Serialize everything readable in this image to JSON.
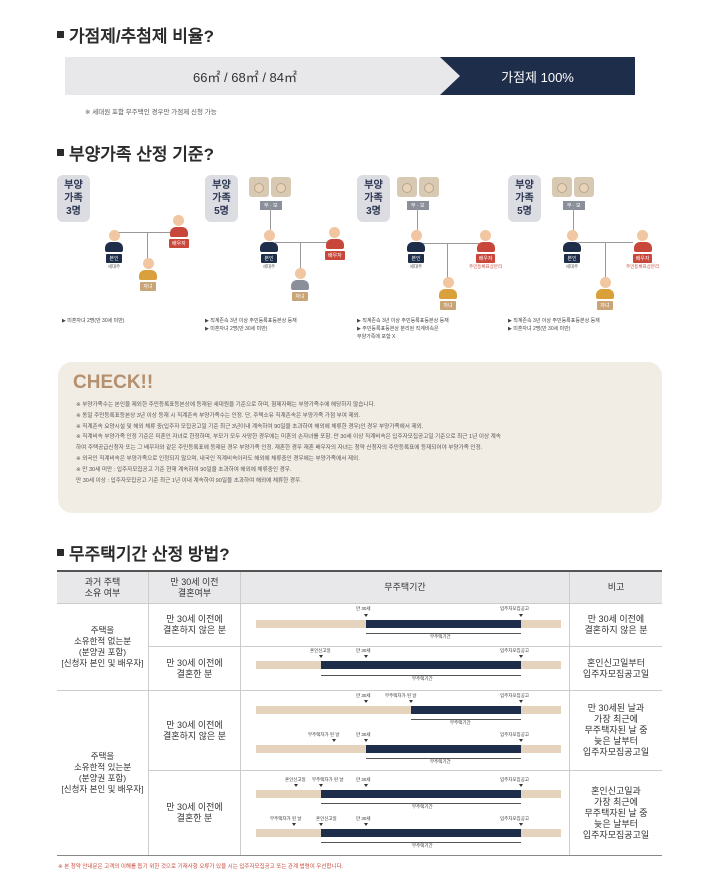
{
  "section1": {
    "title": "가점제/추첨제 비율?",
    "left": "66㎡ / 68㎡ / 84㎡",
    "right": "가점제 100%",
    "note": "※ 세대원 포함 무주택인 경우만 가점제 신청 가능"
  },
  "section2": {
    "title": "부양가족 산정 기준?"
  },
  "families": [
    {
      "badge": [
        "부양",
        "가족",
        "3명"
      ],
      "notes": [
        "▶ 미혼자녀 2명(만 30세 미만)"
      ]
    },
    {
      "badge": [
        "부양",
        "가족",
        "5명"
      ],
      "notes": [
        "▶ 직계존속 3년 이상 주민등록표등본상 등재",
        "▶ 미혼자녀 2명(만 30세 미만)"
      ]
    },
    {
      "badge": [
        "부양",
        "가족",
        "3명"
      ],
      "notes": [
        "▶ 직계존속 3년 이상 주민등록표등본상 등재",
        "▶ 주민등록표등본상 분리된 직계비속은",
        "   부양가족에 포함 X"
      ]
    },
    {
      "badge": [
        "부양",
        "가족",
        "5명"
      ],
      "notes": [
        "▶ 직계존속 3년 이상 주민등록표등본상 등재",
        "▶ 미혼자녀 2명(만 30세 미만)"
      ]
    }
  ],
  "tags": {
    "self": "본인",
    "head": "세대주",
    "spouse": "배우자",
    "child": "자녀",
    "parents": "부 · 모",
    "separate": "주민등록표상분리"
  },
  "check": {
    "title": "CHECK!!",
    "items": [
      "※ 부양가족수는 본인을 제외한 주민등록표등본상에 등재된 세대원을 기준으로 하며, 형제자매는 부양가족수에 해당하지 않습니다.",
      "※ 동일 주민등록표등본상 3년 이상 등재 시 직계존속 부양가족수는 인정. 단, 주택소유 직계존속은 부양가족 가점 부여 제외.",
      "※ 직계존속 요양시설 및 해외 체류 중(입주자 모집공고일 기준 최근 3년이내 계속하여 90일을 초과하여 해외에 체류한 경우)인 경우 부양가족에서 제외.",
      "※ 직계비속 부양가족 인정 기준은 미혼인 자녀로 한정하며, 부모가 모두 사망한 경우에는 미혼의 손자녀를 포함. 만 30세 이상 직계비속은 입주자모집공고일 기준으로 최근 1년 이상 계속",
      "   하여 주택공급신청자 또는 그 배우자와 같은 주민등록표에 등재된 경우 부양가족 인정. 재혼한 경우 재혼 배우자의 자녀는 청약 신청자의 주민등록표에 등재되어야 부양가족 인정.",
      "※ 외국인 직계비속은 부양가족으로 인정되지 않으며, 내국인 직계비속이라도 해외에 체류중인 경우에는 부양가족에서 제외.",
      "※ 만 30세 미만 : 입주자모집공고 기준 현재 계속하여 90일을 초과하여 해외에 체류중인 경우.",
      "   만 30세 이상 : 입주자모집공고 기준 최근 1년 이내 계속하여 90일을 초과하여 해외에 체류한 경우."
    ]
  },
  "section3": {
    "title": "무주택기간 산정 방법?"
  },
  "table": {
    "headers": [
      "과거 주택\n소유 여부",
      "만 30세 이전\n결혼여부",
      "무주택기간",
      "비고"
    ],
    "group1": "주택을\n소유한적 없는분\n(분양권 포함)\n[신청자 본인 및 배우자]",
    "group2": "주택을\n소유한적 있는분\n(분양권 포함)\n[신청자 본인 및 배우자]",
    "rows": [
      {
        "married": "만 30세 이전에\n결혼하지 않은 분",
        "note": "만 30세 이전에\n결혼하지 않은 분"
      },
      {
        "married": "만 30세 이전에\n결혼한 분",
        "note": "혼인신고일부터\n입주자모집공고일"
      },
      {
        "married": "만 30세 이전에\n결혼하지 않은 분",
        "note": "만 30세된 날과\n가장 최근에\n무주택자된 날 중\n늦은 날부터\n입주자모집공고일"
      },
      {
        "married": "만 30세 이전에\n결혼한 분",
        "note": "혼인신고일과\n가장 최근에\n무주택자된 날 중\n늦은 날부터\n입주자모집공고일"
      }
    ],
    "labels": {
      "age30": "만 30세",
      "notice": "입주자모집공고",
      "period": "무주택기간",
      "marriage": "혼인신고일",
      "homeless": "무주택자가 된 날"
    }
  },
  "footnote": "※ 본 청약 안내문은 고객의 이해를 돕기 위한 것으로 기재사항 오류가 있을 시는 입주자모집공고 또는 관계 법령이 우선합니다."
}
